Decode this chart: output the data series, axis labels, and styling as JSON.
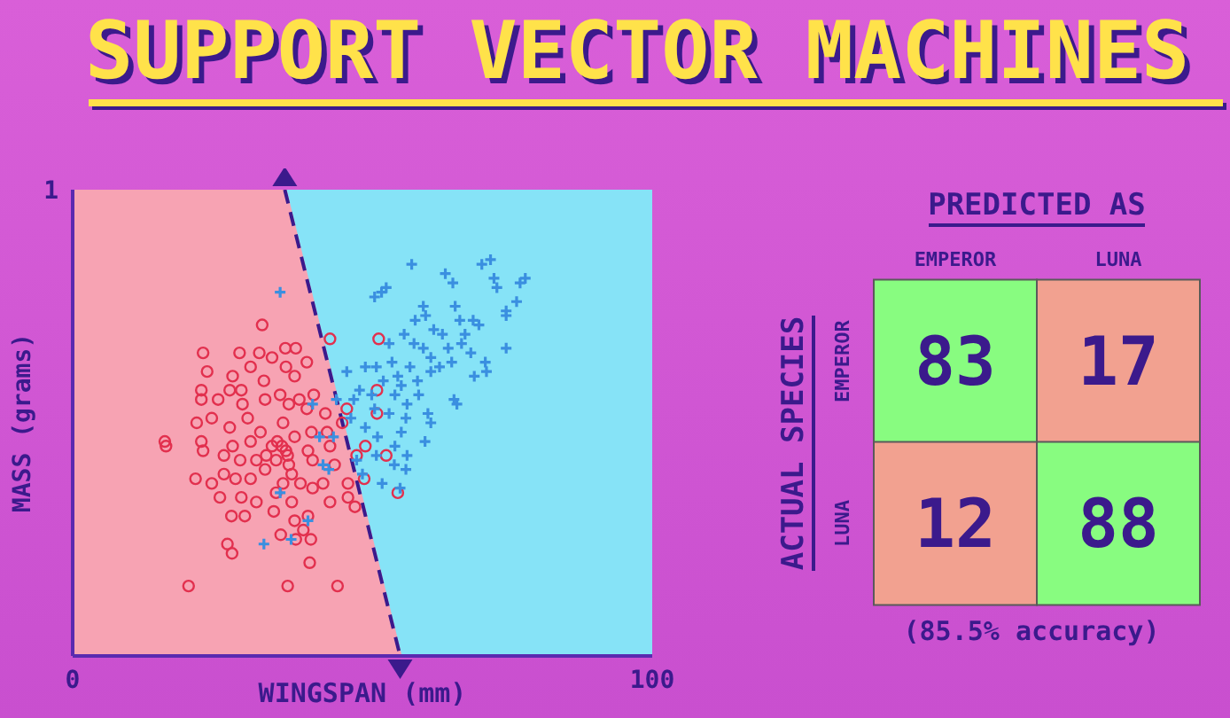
{
  "chart_data": [
    {
      "type": "scatter",
      "title": "SUPPORT VECTOR MACHINES",
      "xlabel": "WINGSPAN (mm)",
      "ylabel": "MASS (grams)",
      "xlim": [
        0,
        100
      ],
      "xticks": [
        0,
        100
      ],
      "ylim": [
        0,
        1
      ],
      "yticks": [
        1
      ],
      "series": [
        {
          "type": "area",
          "color": "#f7a3b3",
          "x": [
            0,
            36.6,
            56.5
          ],
          "values": [
            1,
            1,
            0
          ]
        },
        {
          "type": "scatter",
          "marker": "circle",
          "color": "#e2304e",
          "x": [
            32.7,
            44.4,
            52.8,
            22.5,
            28.8,
            32.2,
            36.7,
            38.5,
            23.2,
            27.6,
            30.7,
            34.4,
            36.8,
            40.4,
            38.3,
            22.2,
            27.1,
            29.1,
            33.0,
            35.8,
            39.1,
            41.6,
            52.5,
            22.2,
            25.1,
            29.3,
            33.2,
            37.3,
            40.4,
            43.6,
            47.3,
            52.5,
            15.9,
            16.1,
            21.4,
            24.0,
            27.1,
            30.2,
            32.4,
            36.3,
            38.3,
            41.2,
            43.9,
            46.5,
            22.2,
            27.6,
            30.7,
            34.4,
            36.8,
            40.6,
            44.4,
            49.0,
            50.5,
            54.1,
            22.5,
            26.1,
            28.9,
            31.7,
            35.1,
            37.3,
            41.4,
            45.2,
            21.2,
            24.0,
            26.1,
            28.1,
            30.7,
            33.2,
            36.3,
            39.3,
            43.2,
            47.5,
            50.3,
            56.1,
            25.4,
            29.1,
            31.7,
            35.1,
            37.8,
            41.4,
            44.4,
            47.5,
            48.7,
            27.4,
            29.7,
            34.7,
            38.3,
            40.6,
            35.9,
            38.5,
            39.8,
            41.1,
            26.7,
            27.5,
            40.9,
            20.0,
            37.1,
            45.7,
            36.1,
            37.1,
            35.3,
            33.4,
            37.8
          ],
          "values": [
            0.71,
            0.68,
            0.68,
            0.65,
            0.65,
            0.65,
            0.66,
            0.66,
            0.61,
            0.6,
            0.62,
            0.64,
            0.62,
            0.63,
            0.6,
            0.57,
            0.57,
            0.57,
            0.59,
            0.56,
            0.55,
            0.56,
            0.57,
            0.55,
            0.55,
            0.54,
            0.55,
            0.54,
            0.53,
            0.52,
            0.53,
            0.52,
            0.46,
            0.45,
            0.5,
            0.51,
            0.49,
            0.51,
            0.48,
            0.5,
            0.47,
            0.48,
            0.48,
            0.5,
            0.46,
            0.45,
            0.46,
            0.45,
            0.44,
            0.44,
            0.45,
            0.43,
            0.45,
            0.43,
            0.44,
            0.43,
            0.42,
            0.42,
            0.42,
            0.41,
            0.42,
            0.41,
            0.38,
            0.37,
            0.39,
            0.38,
            0.38,
            0.4,
            0.37,
            0.37,
            0.37,
            0.37,
            0.38,
            0.35,
            0.34,
            0.34,
            0.33,
            0.35,
            0.33,
            0.36,
            0.33,
            0.34,
            0.32,
            0.3,
            0.3,
            0.31,
            0.29,
            0.3,
            0.26,
            0.25,
            0.27,
            0.25,
            0.24,
            0.22,
            0.2,
            0.15,
            0.15,
            0.15,
            0.45,
            0.43,
            0.46,
            0.43,
            0.39
          ]
        },
        {
          "type": "scatter",
          "marker": "cross",
          "color": "#3a8fe0",
          "x": [
            35.8,
            58.5,
            64.3,
            65.6,
            70.6,
            72.1,
            72.7,
            73.2,
            78.1,
            77.2,
            52.1,
            53.3,
            54.1,
            66.0,
            76.6,
            74.8,
            74.8,
            60.5,
            59.1,
            60.9,
            62.3,
            63.8,
            66.8,
            69.1,
            70.1,
            67.7,
            64.8,
            67.1,
            68.7,
            71.2,
            71.4,
            74.8,
            54.6,
            57.2,
            58.9,
            60.5,
            61.8,
            63.3,
            65.4,
            69.3,
            47.3,
            50.5,
            52.4,
            55.1,
            53.6,
            56.1,
            58.2,
            59.5,
            61.8,
            65.8,
            66.3,
            49.5,
            51.6,
            55.6,
            57.7,
            59.7,
            56.7,
            48.5,
            52.1,
            54.6,
            57.5,
            61.3,
            61.8,
            45.5,
            41.4,
            48.0,
            50.5,
            52.6,
            56.7,
            55.6,
            57.7,
            60.8,
            45.0,
            42.6,
            49.0,
            52.4,
            55.5,
            57.5,
            50.0,
            53.4,
            56.5,
            43.2,
            44.2,
            35.8,
            33.0,
            37.7,
            40.6
          ],
          "values": [
            0.78,
            0.84,
            0.82,
            0.8,
            0.84,
            0.85,
            0.81,
            0.79,
            0.81,
            0.8,
            0.77,
            0.78,
            0.79,
            0.75,
            0.76,
            0.74,
            0.73,
            0.75,
            0.72,
            0.73,
            0.7,
            0.69,
            0.72,
            0.72,
            0.71,
            0.69,
            0.66,
            0.67,
            0.65,
            0.63,
            0.61,
            0.66,
            0.67,
            0.69,
            0.67,
            0.66,
            0.64,
            0.62,
            0.63,
            0.6,
            0.61,
            0.62,
            0.62,
            0.63,
            0.59,
            0.6,
            0.62,
            0.59,
            0.61,
            0.55,
            0.54,
            0.57,
            0.56,
            0.56,
            0.54,
            0.56,
            0.58,
            0.55,
            0.53,
            0.52,
            0.51,
            0.52,
            0.5,
            0.55,
            0.54,
            0.51,
            0.49,
            0.47,
            0.48,
            0.45,
            0.43,
            0.46,
            0.47,
            0.47,
            0.42,
            0.43,
            0.41,
            0.4,
            0.39,
            0.37,
            0.36,
            0.41,
            0.4,
            0.35,
            0.24,
            0.25,
            0.29
          ]
        },
        {
          "type": "line",
          "color": "#3b1a8c",
          "line_style": "dashed",
          "x": [
            36.6,
            56.5
          ],
          "values": [
            1,
            0
          ]
        }
      ]
    },
    {
      "type": "heatmap",
      "xlabel": "PREDICTED AS",
      "ylabel": "ACTUAL SPECIES",
      "categories": [
        "EMPEROR",
        "LUNA"
      ],
      "y_categories": [
        "EMPEROR",
        "LUNA"
      ],
      "cells": [
        [
          83,
          17
        ],
        [
          12,
          88
        ]
      ],
      "data_labels": true,
      "annotations": [
        "(85.5% accuracy)"
      ]
    }
  ]
}
